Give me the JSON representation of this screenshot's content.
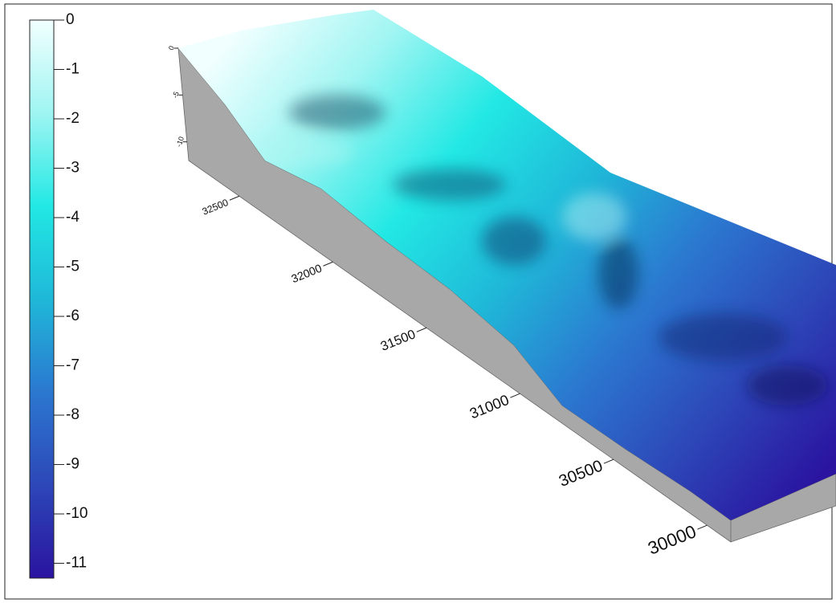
{
  "chart_data": {
    "type": "surface3d",
    "colorbar": {
      "lim": [
        -11.3,
        0
      ],
      "ticks": [
        0,
        -1,
        -2,
        -3,
        -4,
        -5,
        -6,
        -7,
        -8,
        -9,
        -10,
        -11
      ],
      "colors": [
        "#f2ffff",
        "#9ff5f2",
        "#22e8e4",
        "#1fb8d8",
        "#2b78d0",
        "#2d47b8",
        "#2a14a0"
      ]
    },
    "xlim": [
      32770,
      29873
    ],
    "xticks": [
      32500,
      32000,
      31500,
      31000,
      30500,
      30000
    ],
    "zlim": [
      0,
      -12
    ],
    "zticks": [
      0,
      -5,
      -10
    ]
  }
}
